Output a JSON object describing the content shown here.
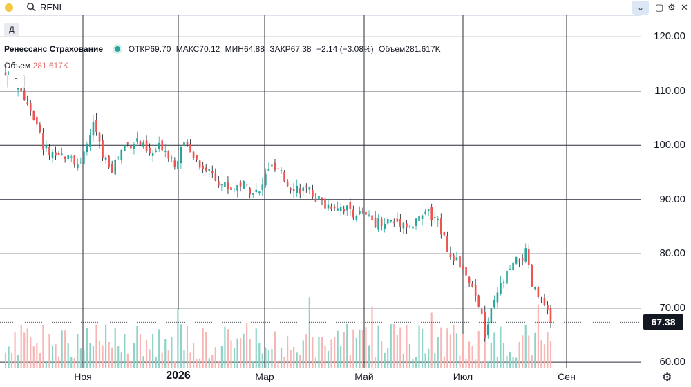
{
  "topbar": {
    "ticker": "RENI",
    "collapse_icon": "chevron-down-icon",
    "icons": [
      "square-icon",
      "gear-icon",
      "close-icon"
    ]
  },
  "period_button": "Д",
  "legend": {
    "name": "Ренессанс Страхование",
    "open_label": "ОТКР",
    "open": "69.70",
    "high_label": "МАКС",
    "high": "70.12",
    "low_label": "МИН",
    "low": "64.88",
    "close_label": "ЗАКР",
    "close": "67.38",
    "change": "−2.14 (−3.08%)",
    "volume_label": "Объем",
    "volume": "281.617K"
  },
  "volume_legend": {
    "label": "Объем",
    "value": "281.617K"
  },
  "price_tag": "67.38",
  "colors": {
    "up": "#26a69a",
    "down": "#ef5350",
    "up_vol": "#8fd3c6",
    "down_vol": "#f7b6b4",
    "grid": "#2a2e39",
    "tag_bg": "#131722"
  },
  "chart_data": {
    "type": "candlestick",
    "y_axis": {
      "ticks": [
        "60.00",
        "70.00",
        "80.00",
        "90.00",
        "100.00",
        "110.00",
        "120.00"
      ],
      "range": [
        59,
        124
      ]
    },
    "x_axis": {
      "labels": [
        "Ноя",
        "2026",
        "Мар",
        "Май",
        "Июл",
        "Сен"
      ]
    },
    "last_price": 67.38,
    "close_path": [
      {
        "t": 0,
        "p": 113
      },
      {
        "t": 4,
        "p": 111
      },
      {
        "t": 8,
        "p": 107
      },
      {
        "t": 12,
        "p": 100
      },
      {
        "t": 16,
        "p": 97
      },
      {
        "t": 20,
        "p": 99
      },
      {
        "t": 24,
        "p": 96
      },
      {
        "t": 28,
        "p": 104
      },
      {
        "t": 31,
        "p": 98
      },
      {
        "t": 34,
        "p": 96
      },
      {
        "t": 38,
        "p": 100
      },
      {
        "t": 42,
        "p": 101
      },
      {
        "t": 46,
        "p": 98
      },
      {
        "t": 50,
        "p": 100
      },
      {
        "t": 54,
        "p": 97
      },
      {
        "t": 58,
        "p": 101
      },
      {
        "t": 60,
        "p": 98
      },
      {
        "t": 63,
        "p": 96
      },
      {
        "t": 66,
        "p": 95
      },
      {
        "t": 69,
        "p": 93
      },
      {
        "t": 72,
        "p": 92
      },
      {
        "t": 75,
        "p": 93
      },
      {
        "t": 78,
        "p": 92
      },
      {
        "t": 81,
        "p": 91
      },
      {
        "t": 84,
        "p": 96
      },
      {
        "t": 87,
        "p": 95
      },
      {
        "t": 90,
        "p": 93
      },
      {
        "t": 94,
        "p": 92
      },
      {
        "t": 98,
        "p": 91
      },
      {
        "t": 102,
        "p": 89
      },
      {
        "t": 106,
        "p": 89
      },
      {
        "t": 110,
        "p": 88
      },
      {
        "t": 114,
        "p": 87
      },
      {
        "t": 118,
        "p": 86
      },
      {
        "t": 122,
        "p": 86
      },
      {
        "t": 126,
        "p": 86
      },
      {
        "t": 130,
        "p": 85
      },
      {
        "t": 134,
        "p": 88
      },
      {
        "t": 137,
        "p": 86
      },
      {
        "t": 140,
        "p": 84
      },
      {
        "t": 142,
        "p": 79
      },
      {
        "t": 145,
        "p": 78
      },
      {
        "t": 148,
        "p": 74
      },
      {
        "t": 151,
        "p": 71
      },
      {
        "t": 153,
        "p": 65
      },
      {
        "t": 155,
        "p": 69
      },
      {
        "t": 158,
        "p": 74
      },
      {
        "t": 161,
        "p": 77
      },
      {
        "t": 164,
        "p": 79
      },
      {
        "t": 166,
        "p": 80
      },
      {
        "t": 168,
        "p": 74
      },
      {
        "t": 170,
        "p": 72
      },
      {
        "t": 172,
        "p": 70
      },
      {
        "t": 174,
        "p": 67.38
      }
    ],
    "gap_after_t": 59
  }
}
